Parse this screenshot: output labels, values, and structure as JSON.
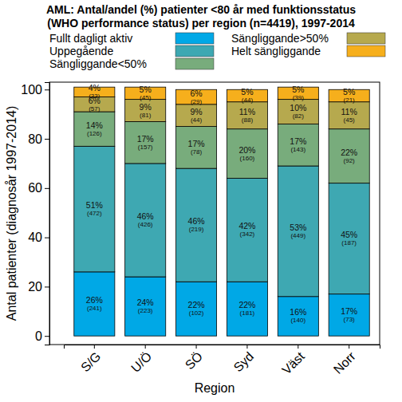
{
  "chart_data": {
    "type": "bar",
    "stacked": true,
    "data_labels": true,
    "legend": "top",
    "title": "AML: Antal/andel (%) patienter <80 år med funktionsstatus\n(WHO performance status) per region (n=4419), 1997-2014",
    "x_label": "Region",
    "y_label": "Antal patienter (diagnosår 1997-2014)",
    "categories": [
      "S/G",
      "U/Ö",
      "SÖ",
      "Syd",
      "Väst",
      "Norr"
    ],
    "ylim": [
      -3.5,
      103
    ],
    "yticks": [
      0,
      20,
      40,
      60,
      80,
      100
    ],
    "series": [
      {
        "name": "Fullt dagligt aktiv",
        "color": "#00a8e6",
        "values": [
          26,
          24,
          22,
          22,
          16,
          17
        ],
        "value_labels": [
          "26%",
          "24%",
          "22%",
          "22%",
          "16%",
          "17%"
        ],
        "count_labels": [
          "(241)",
          "(223)",
          "(102)",
          "(181)",
          "(140)",
          "(73)"
        ]
      },
      {
        "name": "Uppegående",
        "color": "#3ea8b2",
        "values": [
          51,
          46,
          46,
          42,
          53,
          45
        ],
        "value_labels": [
          "51%",
          "46%",
          "46%",
          "42%",
          "53%",
          "45%"
        ],
        "count_labels": [
          "(472)",
          "(426)",
          "(219)",
          "(342)",
          "(449)",
          "(187)"
        ]
      },
      {
        "name": "Sängliggande<50%",
        "color": "#78ac7c",
        "values": [
          14,
          17,
          17,
          20,
          17,
          22
        ],
        "value_labels": [
          "14%",
          "17%",
          "17%",
          "20%",
          "17%",
          "22%"
        ],
        "count_labels": [
          "(126)",
          "(157)",
          "(78)",
          "(160)",
          "(143)",
          "(92)"
        ]
      },
      {
        "name": "Sängliggande>50%",
        "color": "#b6a94e",
        "values": [
          6,
          9,
          9,
          11,
          10,
          11
        ],
        "value_labels": [
          "6%",
          "9%",
          "9%",
          "11%",
          "10%",
          "11%"
        ],
        "count_labels": [
          "(57)",
          "(81)",
          "(44)",
          "(88)",
          "(82)",
          "(45)"
        ]
      },
      {
        "name": "Helt sängliggande",
        "color": "#f6af1c",
        "values": [
          4,
          5,
          6,
          5,
          5,
          5
        ],
        "value_labels": [
          "4%",
          "5%",
          "6%",
          "5%",
          "5%",
          "5%"
        ],
        "count_labels": [
          "(33)",
          "(45)",
          "(29)",
          "(44)",
          "(39)",
          "(21)"
        ]
      }
    ]
  }
}
